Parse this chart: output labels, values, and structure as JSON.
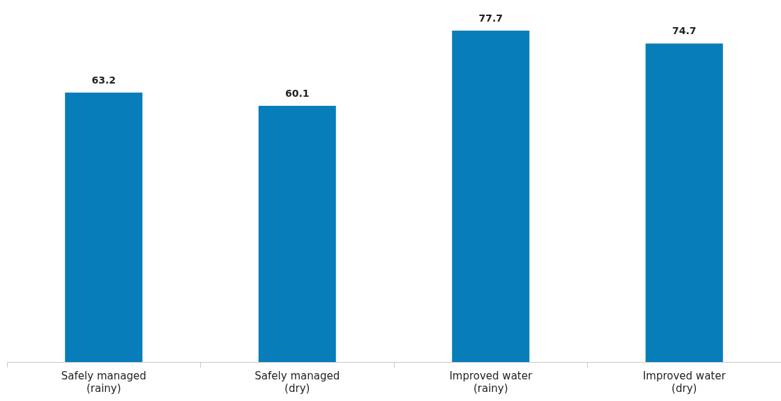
{
  "chart_data": {
    "type": "bar",
    "categories": [
      "Safely managed\n(rainy)",
      "Safely managed\n(dry)",
      "Improved water\n(rainy)",
      "Improved water\n(dry)"
    ],
    "values": [
      63.2,
      60.1,
      77.7,
      74.7
    ],
    "color": "#077dba",
    "data_labels": true,
    "grid": false,
    "legend": false
  }
}
